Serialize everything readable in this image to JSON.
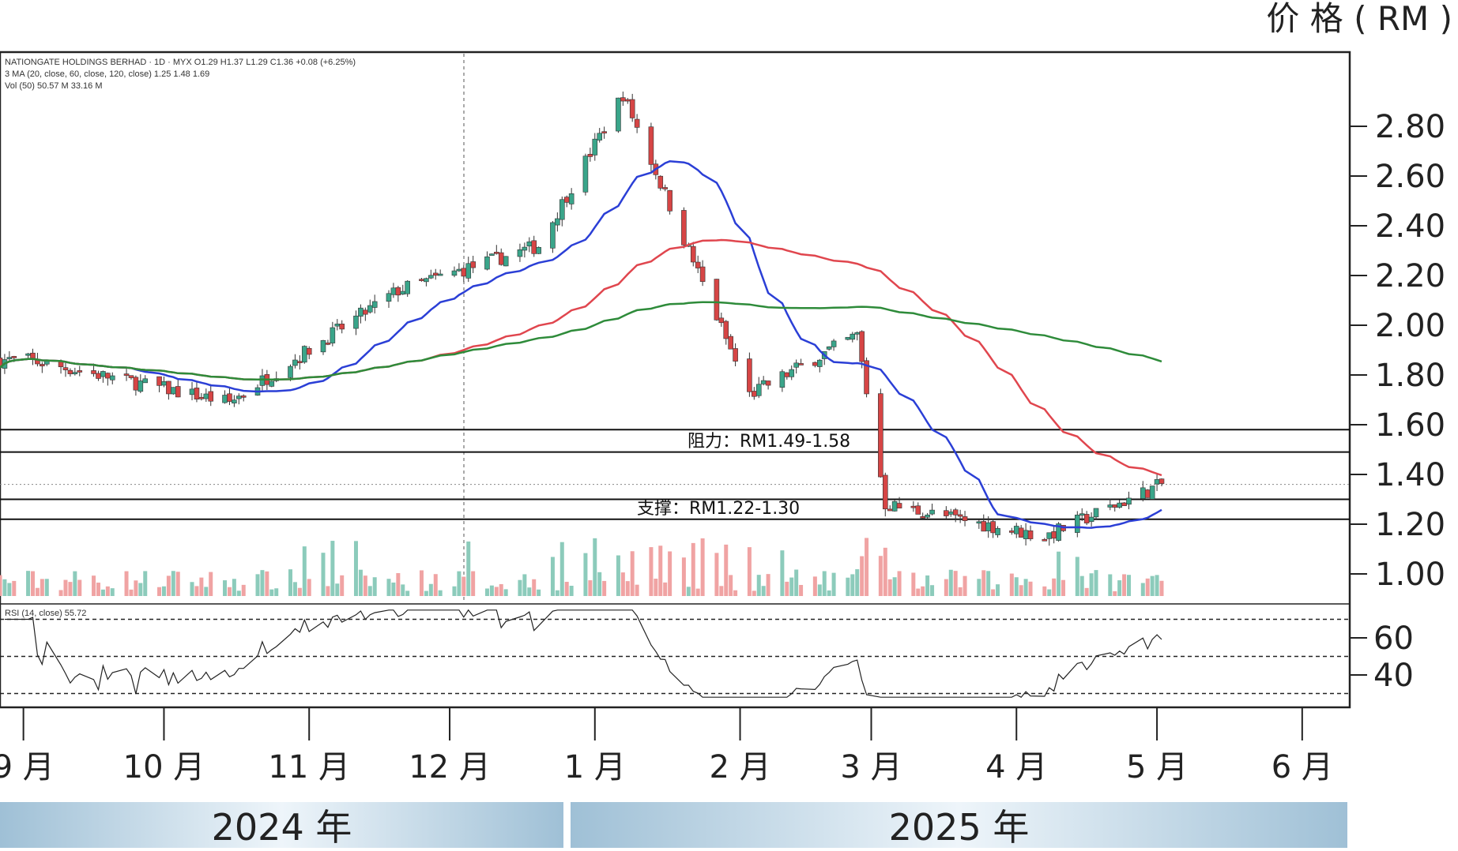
{
  "chart_data": {
    "type": "candlestick",
    "unit_label": "价 格 ( RM )",
    "header_lines": [
      "NATIONGATE HOLDINGS BERHAD · 1D · MYX  O1.29  H1.37  L1.29  C1.36  +0.08 (+6.25%)",
      "3 MA (20, close, 60, close, 120, close)  1.25  1.48  1.69",
      "Vol (50)  50.57 M  33.16 M"
    ],
    "rsi_label": "RSI (14, close)  55.72",
    "price_ticks": [
      "2.80",
      "2.60",
      "2.40",
      "2.20",
      "2.00",
      "1.80",
      "1.60",
      "1.40",
      "1.20",
      "1.00"
    ],
    "price_tick_values": [
      2.8,
      2.6,
      2.4,
      2.2,
      2.0,
      1.8,
      1.6,
      1.4,
      1.2,
      1.0
    ],
    "rsi_ticks": [
      "60",
      "40"
    ],
    "rsi_tick_values": [
      60,
      40
    ],
    "months": [
      "9 月",
      "10 月",
      "11 月",
      "12 月",
      "1 月",
      "2 月",
      "3 月",
      "4 月",
      "5 月",
      "6 月"
    ],
    "years": [
      "2024 年",
      "2025 年"
    ],
    "ylim": [
      0.85,
      3.0
    ],
    "levels": [
      {
        "label": "阻力：RM1.49-1.58",
        "low": 1.49,
        "high": 1.58
      },
      {
        "label": "支撑：RM1.22-1.30",
        "low": 1.22,
        "high": 1.3
      }
    ],
    "current_price": 1.36,
    "rsi_bands": [
      70,
      50,
      30
    ],
    "key_points": [
      {
        "date": "2024-09-02",
        "close": 1.86
      },
      {
        "date": "2024-10-15",
        "close": 1.69
      },
      {
        "date": "2024-11-20",
        "close": 2.14
      },
      {
        "date": "2024-12-20",
        "close": 2.32
      },
      {
        "date": "2025-01-07",
        "close": 2.93
      },
      {
        "date": "2025-02-03",
        "close": 1.72
      },
      {
        "date": "2025-02-26",
        "close": 1.96
      },
      {
        "date": "2025-03-04",
        "close": 1.28
      },
      {
        "date": "2025-04-07",
        "close": 1.15
      },
      {
        "date": "2025-05-02",
        "close": 1.36
      }
    ],
    "ma_series": [
      {
        "period": 20,
        "last": 1.25,
        "color": "#2b3fd6"
      },
      {
        "period": 60,
        "last": 1.48,
        "color": "#e0464e"
      },
      {
        "period": 120,
        "last": 1.69,
        "color": "#2e8b3a"
      }
    ],
    "colors": {
      "up": "#3aa58a",
      "down": "#d64545",
      "volume_up": "#8ccbbb",
      "volume_down": "#f0a3a3"
    }
  }
}
